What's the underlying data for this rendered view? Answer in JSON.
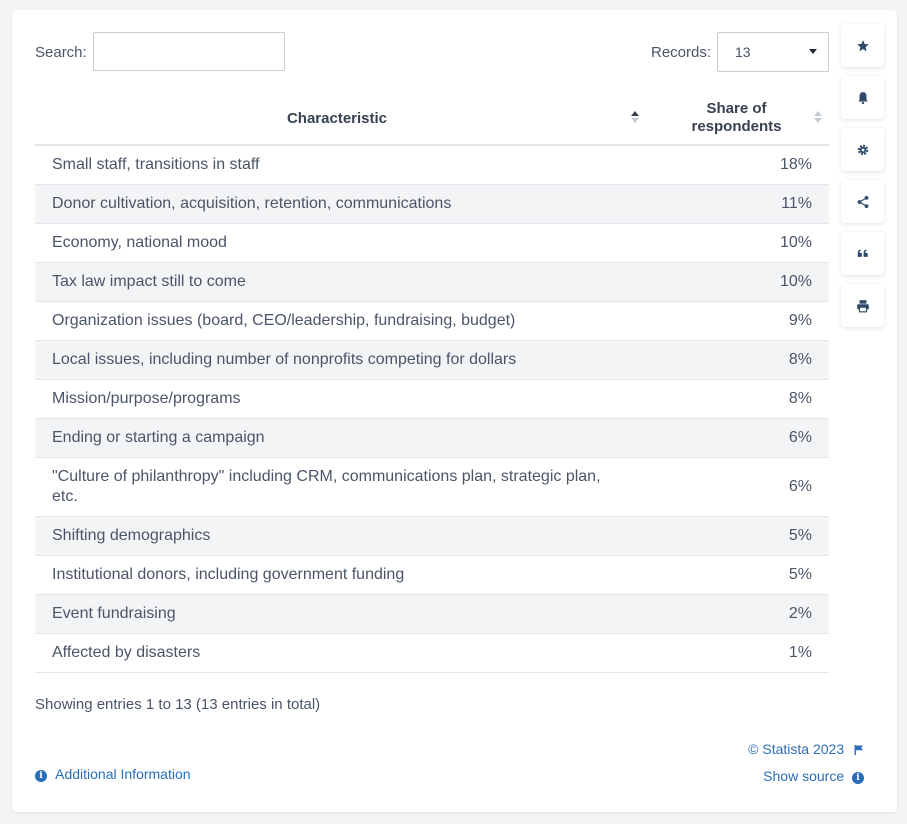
{
  "search": {
    "label": "Search:",
    "value": "",
    "placeholder": ""
  },
  "records": {
    "label": "Records:",
    "selected": "13"
  },
  "table": {
    "headers": [
      "Characteristic",
      "Share of respondents"
    ],
    "rows": [
      [
        "Small staff, transitions in staff",
        "18%"
      ],
      [
        "Donor cultivation, acquisition, retention, communications",
        "11%"
      ],
      [
        "Economy, national mood",
        "10%"
      ],
      [
        "Tax law impact still to come",
        "10%"
      ],
      [
        "Organization issues (board, CEO/leadership, fundraising, budget)",
        "9%"
      ],
      [
        "Local issues, including number of nonprofits competing for dollars",
        "8%"
      ],
      [
        "Mission/purpose/programs",
        "8%"
      ],
      [
        "Ending or starting a campaign",
        "6%"
      ],
      [
        "\"Culture of philanthropy\" including CRM, communications plan, strategic plan, etc.",
        "6%"
      ],
      [
        "Shifting demographics",
        "5%"
      ],
      [
        "Institutional donors, including government funding",
        "5%"
      ],
      [
        "Event fundraising",
        "2%"
      ],
      [
        "Affected by disasters",
        "1%"
      ]
    ]
  },
  "footer": {
    "entries_info": "Showing entries 1 to 13 (13 entries in total)",
    "copyright": "© Statista 2023",
    "show_source": "Show source",
    "additional_info": "Additional Information"
  },
  "sidebar": {
    "icons": [
      "star-icon",
      "bell-icon",
      "gear-icon",
      "share-icon",
      "quote-icon",
      "print-icon"
    ]
  },
  "colors": {
    "link": "#2a6ebb",
    "row_alt": "#f3f4f6",
    "icon": "#2f4a6b"
  }
}
